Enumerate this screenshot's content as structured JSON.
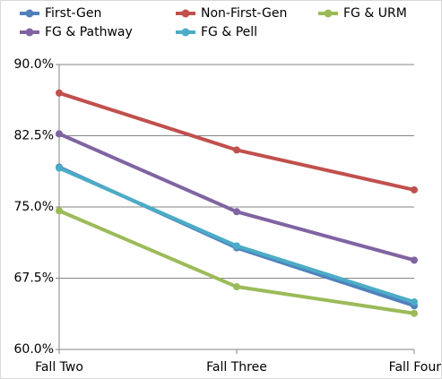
{
  "chart_data": {
    "type": "line",
    "categories": [
      "Fall Two",
      "Fall Three",
      "Fall Four"
    ],
    "series": [
      {
        "name": "First-Gen",
        "color": "#4f81bd",
        "values": [
          79.2,
          70.7,
          64.6
        ]
      },
      {
        "name": "Non-First-Gen",
        "color": "#c0504d",
        "values": [
          87.0,
          81.0,
          76.8
        ]
      },
      {
        "name": "FG & URM",
        "color": "#9bbb59",
        "values": [
          74.6,
          66.6,
          63.8
        ]
      },
      {
        "name": "FG & Pathway",
        "color": "#8064a2",
        "values": [
          82.7,
          74.5,
          69.4
        ]
      },
      {
        "name": "FG & Pell",
        "color": "#4bacc6",
        "values": [
          79.1,
          70.9,
          65.0
        ]
      }
    ],
    "ylim": [
      60,
      90
    ],
    "yticks": [
      {
        "value": 60,
        "label": "60.0%"
      },
      {
        "value": 67.5,
        "label": "67.5%"
      },
      {
        "value": 75,
        "label": "75.0%"
      },
      {
        "value": 82.5,
        "label": "82.5%"
      },
      {
        "value": 90,
        "label": "90.0%"
      }
    ],
    "grid": true,
    "legend": "top"
  }
}
